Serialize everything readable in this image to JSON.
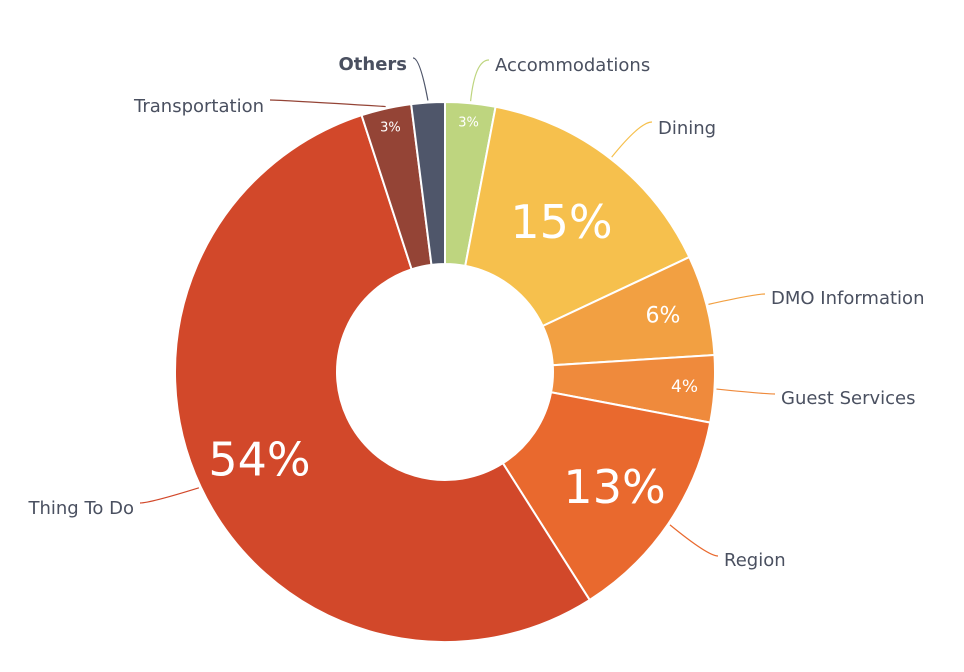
{
  "chart_data": {
    "type": "pie",
    "variant": "donut",
    "title": "",
    "slices": [
      {
        "name": "Accommodations",
        "value": 3,
        "label": "3%",
        "color": "#bed57f"
      },
      {
        "name": "Dining",
        "value": 15,
        "label": "15%",
        "color": "#f6c04d"
      },
      {
        "name": "DMO Information",
        "value": 6,
        "label": "6%",
        "color": "#f2a042"
      },
      {
        "name": "Guest Services",
        "value": 4,
        "label": "4%",
        "color": "#ef8a3c"
      },
      {
        "name": "Region",
        "value": 13,
        "label": "13%",
        "color": "#e9692e"
      },
      {
        "name": "Thing To Do",
        "value": 54,
        "label": "54%",
        "color": "#d2482a"
      },
      {
        "name": "Transportation",
        "value": 3,
        "label": "3%",
        "color": "#944436"
      },
      {
        "name": "Others",
        "value": 2,
        "label": "",
        "color": "#4f566a"
      }
    ],
    "label_color": "#4a5060"
  }
}
